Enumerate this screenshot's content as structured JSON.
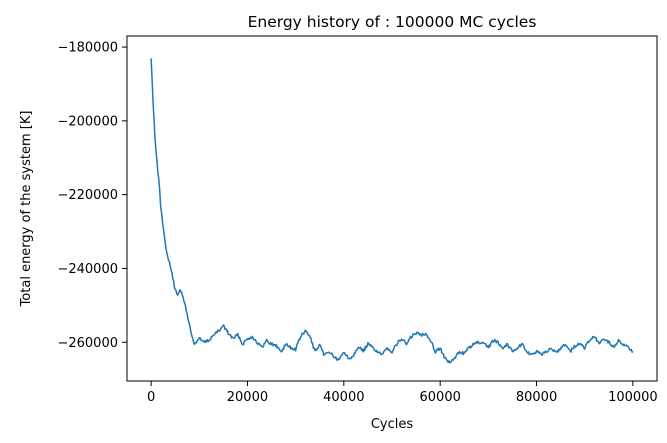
{
  "chart_data": {
    "type": "line",
    "title": "Energy history of : 100000 MC cycles",
    "xlabel": "Cycles",
    "ylabel": "Total energy of the system [K]",
    "xlim": [
      -5000,
      105000
    ],
    "ylim": [
      -270500,
      -177000
    ],
    "xticks": [
      0,
      20000,
      40000,
      60000,
      80000,
      100000
    ],
    "yticks": [
      -180000,
      -200000,
      -220000,
      -240000,
      -260000
    ],
    "grid": false,
    "line_color": "#1f77b4",
    "series": [
      {
        "x": [
          0,
          250,
          500,
          800,
          1200,
          1600,
          2000,
          2400,
          2800,
          3200,
          3600,
          4000,
          4500,
          5000,
          5500,
          6000,
          6500,
          7000,
          7500,
          8000,
          8500,
          9000,
          10000,
          11000,
          12000,
          13000,
          14000,
          15000,
          16000,
          17000,
          18000,
          19000,
          20000,
          21000,
          22000,
          23000,
          24000,
          25000,
          26000,
          27000,
          28000,
          29000,
          30000,
          31000,
          32000,
          33000,
          34000,
          35000,
          36000,
          37000,
          38000,
          39000,
          40000,
          41000,
          42000,
          43000,
          44000,
          45000,
          46000,
          47000,
          48000,
          49000,
          50000,
          51000,
          52000,
          53000,
          54000,
          55000,
          56000,
          57000,
          58000,
          59000,
          60000,
          61000,
          62000,
          63000,
          64000,
          65000,
          66000,
          67000,
          68000,
          69000,
          70000,
          71000,
          72000,
          73000,
          74000,
          75000,
          76000,
          77000,
          78000,
          79000,
          80000,
          81000,
          82000,
          83000,
          84000,
          85000,
          86000,
          87000,
          88000,
          89000,
          90000,
          91000,
          92000,
          93000,
          94000,
          95000,
          96000,
          97000,
          98000,
          99000,
          100000
        ],
        "y": [
          -183000,
          -190000,
          -197000,
          -204000,
          -211000,
          -216000,
          -223000,
          -228000,
          -232000,
          -235000,
          -237500,
          -239500,
          -242500,
          -246000,
          -247000,
          -245500,
          -247500,
          -249500,
          -252500,
          -255500,
          -258500,
          -260500,
          -259000,
          -260000,
          -259500,
          -258000,
          -257000,
          -255500,
          -257500,
          -259000,
          -258000,
          -260500,
          -259000,
          -258500,
          -260000,
          -261500,
          -259500,
          -260500,
          -261000,
          -262500,
          -260500,
          -261500,
          -262000,
          -258500,
          -257000,
          -258500,
          -262500,
          -261000,
          -263500,
          -262500,
          -264000,
          -265000,
          -262500,
          -264500,
          -263500,
          -261000,
          -262500,
          -260500,
          -261500,
          -262500,
          -263500,
          -261500,
          -262500,
          -260500,
          -259000,
          -260500,
          -258500,
          -257500,
          -258000,
          -257500,
          -259500,
          -262500,
          -261500,
          -264500,
          -265500,
          -264500,
          -262500,
          -263000,
          -261500,
          -260500,
          -260000,
          -260500,
          -261500,
          -259500,
          -260000,
          -261500,
          -260500,
          -262500,
          -261500,
          -260500,
          -262500,
          -263500,
          -262500,
          -263500,
          -262500,
          -261500,
          -263000,
          -261500,
          -260500,
          -262500,
          -261000,
          -260500,
          -261500,
          -259500,
          -258500,
          -260500,
          -259000,
          -260000,
          -261500,
          -259500,
          -260500,
          -261500,
          -262500
        ]
      }
    ]
  }
}
